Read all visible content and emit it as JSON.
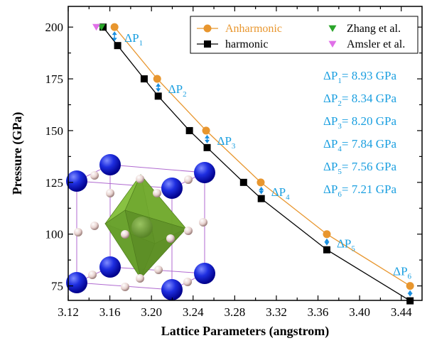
{
  "chart_data": {
    "type": "line",
    "xlabel": "Lattice Parameters (angstrom)",
    "ylabel": "Pressure (GPa)",
    "xlim": [
      3.12,
      3.46
    ],
    "ylim": [
      68,
      210
    ],
    "xticks": [
      "3.12",
      "3.16",
      "3.20",
      "3.24",
      "3.28",
      "3.32",
      "3.36",
      "3.40",
      "3.44"
    ],
    "yticks": [
      "75",
      "100",
      "125",
      "150",
      "175",
      "200"
    ],
    "grid": false,
    "legend_position": "top-right",
    "series": [
      {
        "name": "Anharmonic",
        "color": "#e8962e",
        "marker": "circle",
        "x": [
          3.1645,
          3.2055,
          3.2525,
          3.305,
          3.3685,
          3.4485
        ],
        "y": [
          200,
          175,
          150,
          125,
          100,
          75
        ]
      },
      {
        "name": "harmonic",
        "color": "#000000",
        "marker": "square",
        "x": [
          3.1535,
          3.1675,
          3.193,
          3.2065,
          3.2365,
          3.2535,
          3.2885,
          3.3055,
          3.3685,
          3.4485
        ],
        "y": [
          200,
          191.07,
          175,
          166.66,
          150,
          141.8,
          125,
          117.16,
          92.44,
          67.79
        ]
      },
      {
        "name": "Zhang et al.",
        "color": "#2aa52a",
        "marker": "triangle-down",
        "x": [
          3.152
        ],
        "y": [
          200
        ]
      },
      {
        "name": "Amsler et al.",
        "color": "#e070e8",
        "marker": "triangle-down",
        "x": [
          3.147
        ],
        "y": [
          200
        ]
      }
    ],
    "annotations": [
      {
        "label": "ΔP",
        "sub": "1",
        "x": 3.1645,
        "y_top": 200,
        "y_bottom": 191.07
      },
      {
        "label": "ΔP",
        "sub": "2",
        "x": 3.2065,
        "y_top": 175,
        "y_bottom": 166.66
      },
      {
        "label": "ΔP",
        "sub": "3",
        "x": 3.2535,
        "y_top": 150,
        "y_bottom": 141.8
      },
      {
        "label": "ΔP",
        "sub": "4",
        "x": 3.3055,
        "y_top": 125,
        "y_bottom": 117.16
      },
      {
        "label": "ΔP",
        "sub": "5",
        "x": 3.3685,
        "y_top": 100,
        "y_bottom": 92.44
      },
      {
        "label": "ΔP",
        "sub": "6",
        "x": 3.4485,
        "y_top": 75,
        "y_bottom": 67.79
      }
    ],
    "delta_values": [
      {
        "label": "ΔP",
        "sub": "1",
        "value": "= 8.93 GPa"
      },
      {
        "label": "ΔP",
        "sub": "2",
        "value": "= 8.34 GPa"
      },
      {
        "label": "ΔP",
        "sub": "3",
        "value": "= 8.20 GPa"
      },
      {
        "label": "ΔP",
        "sub": "4",
        "value": "= 7.84 GPa"
      },
      {
        "label": "ΔP",
        "sub": "5",
        "value": "= 7.56 GPa"
      },
      {
        "label": "ΔP",
        "sub": "6",
        "value": "= 7.21 GPa"
      }
    ],
    "inset": "crystal-structure"
  }
}
